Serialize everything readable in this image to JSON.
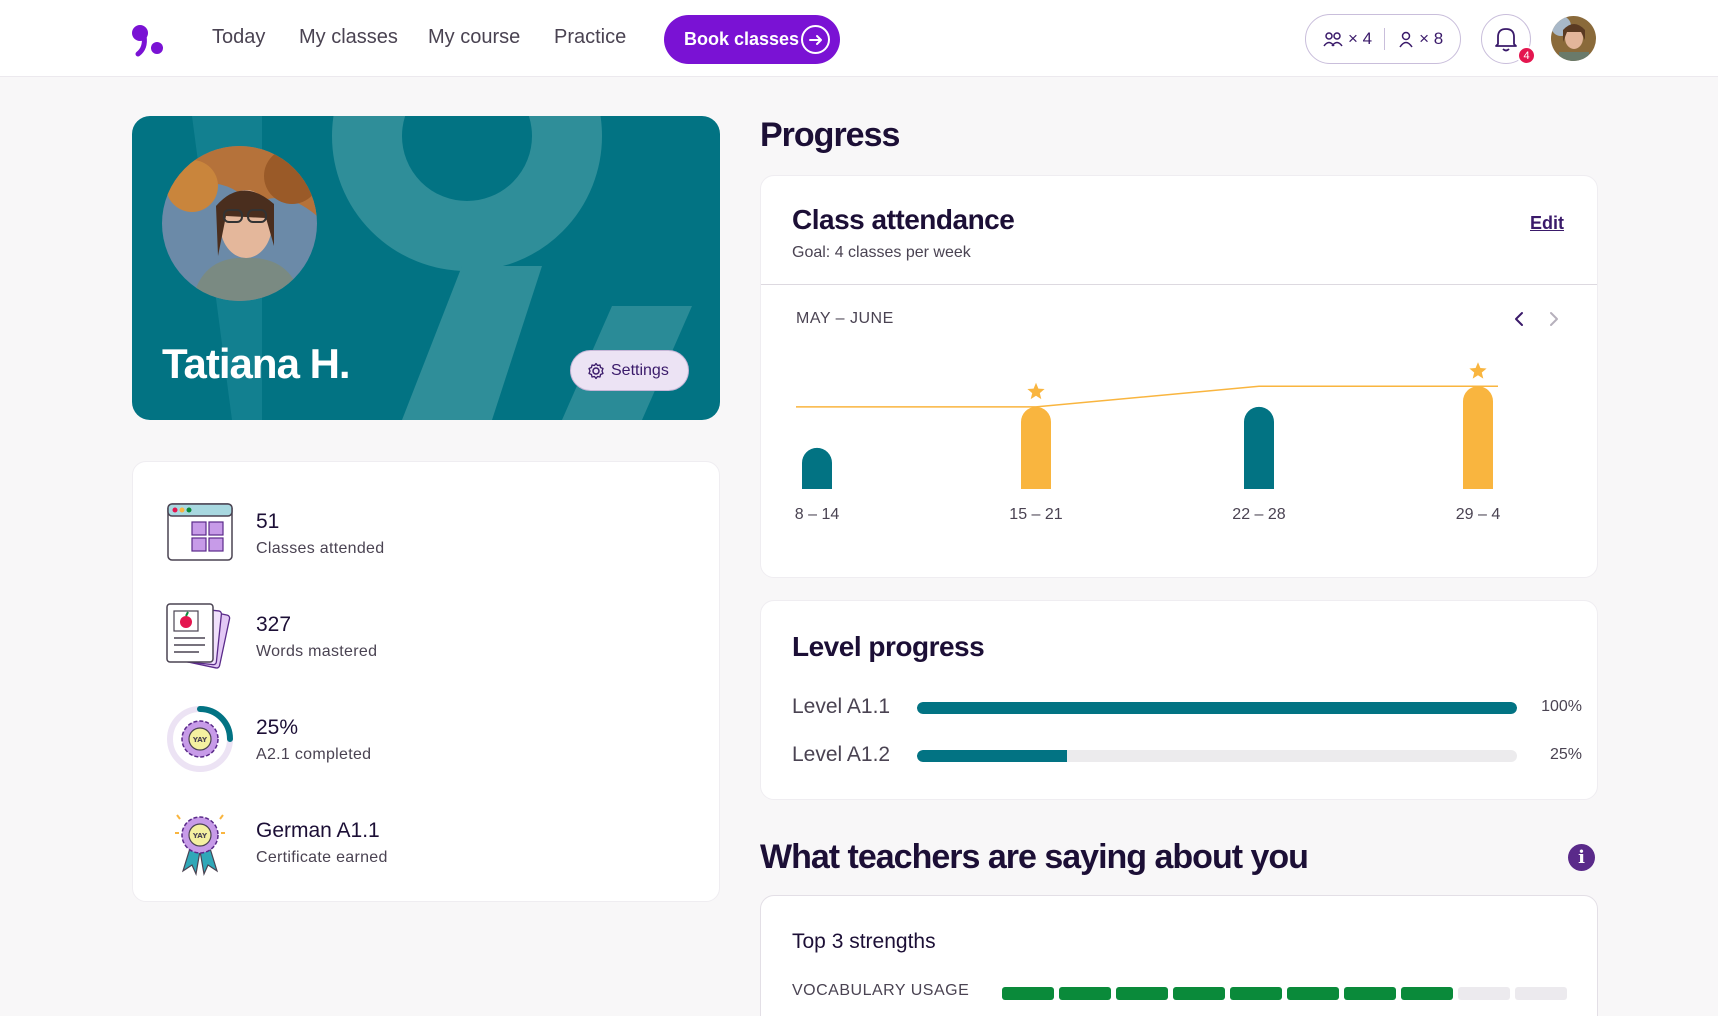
{
  "header": {
    "nav": [
      "Today",
      "My classes",
      "My course",
      "Practice"
    ],
    "book_label": "Book classes",
    "group_credits": "× 4",
    "private_credits": "× 8",
    "notifications_count": "4"
  },
  "profile": {
    "name": "Tatiana H.",
    "settings_label": "Settings"
  },
  "stats": [
    {
      "value": "51",
      "label": "Classes attended",
      "icon": "classroom-icon"
    },
    {
      "value": "327",
      "label": "Words mastered",
      "icon": "flashcards-icon"
    },
    {
      "value": "25%",
      "label": "A2.1 completed",
      "icon": "progress-badge-icon"
    },
    {
      "value": "German A1.1",
      "label": "Certificate earned",
      "icon": "certificate-ribbon-icon"
    }
  ],
  "progress": {
    "title": "Progress",
    "attendance": {
      "title": "Class attendance",
      "goal": "Goal: 4 classes per week",
      "edit_label": "Edit",
      "range": "MAY – JUNE"
    },
    "levels": {
      "title": "Level progress",
      "items": [
        {
          "name": "Level A1.1",
          "pct_label": "100%",
          "value": 1.0
        },
        {
          "name": "Level A1.2",
          "pct_label": "25%",
          "value": 0.25
        }
      ]
    }
  },
  "teachers": {
    "title": "What teachers are saying about you",
    "strengths_title": "Top 3 strengths",
    "strengths": [
      {
        "name": "VOCABULARY USAGE",
        "score": 8,
        "max": 10
      }
    ]
  },
  "colors": {
    "brand": "#7a12d4",
    "teal": "#027383",
    "goal_met": "#f9b53f",
    "strength": "#0a8a3a"
  },
  "chart_data": {
    "type": "bar",
    "categories": [
      "8 – 14",
      "15 – 21",
      "22 – 28",
      "29 – 4"
    ],
    "values": [
      2,
      4,
      4,
      5
    ],
    "goal": [
      4,
      4,
      5,
      5
    ],
    "goal_met": [
      false,
      true,
      false,
      true
    ],
    "ylim": [
      0,
      5.5
    ]
  }
}
